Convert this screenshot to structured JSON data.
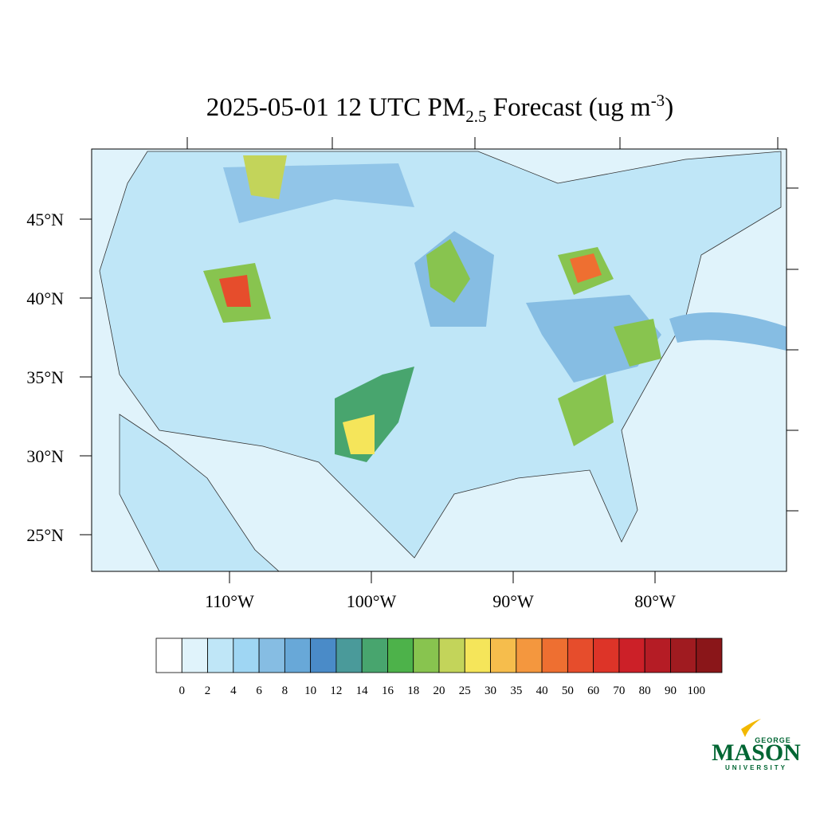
{
  "map": {
    "title": {
      "prefix": "2025-05-01 12 UTC PM",
      "subscript": "2.5",
      "middle": " Forecast (ug m",
      "superscript": "-3",
      "suffix": ")"
    },
    "lat_labels": [
      {
        "value": 45,
        "label": "45°N"
      },
      {
        "value": 40,
        "label": "40°N"
      },
      {
        "value": 35,
        "label": "35°N"
      },
      {
        "value": 30,
        "label": "30°N"
      },
      {
        "value": 25,
        "label": "25°N"
      }
    ],
    "lon_labels": [
      {
        "value": -110,
        "label": "110°W"
      },
      {
        "value": -100,
        "label": "100°W"
      },
      {
        "value": -90,
        "label": "90°W"
      },
      {
        "value": -80,
        "label": "80°W"
      }
    ],
    "colorbar": {
      "levels": [
        0,
        2,
        4,
        6,
        8,
        10,
        12,
        14,
        16,
        18,
        20,
        25,
        30,
        35,
        40,
        50,
        60,
        70,
        80,
        90,
        100
      ],
      "colors": [
        "#ffffff",
        "#e0f3fb",
        "#bfe6f7",
        "#9fd6f3",
        "#86bde3",
        "#68a8d8",
        "#4a8bc8",
        "#4a9a9a",
        "#48a56e",
        "#4db24a",
        "#88c44f",
        "#c3d45a",
        "#f5e55a",
        "#f6bd4c",
        "#f4973e",
        "#ee6f31",
        "#e64d2c",
        "#dd3428",
        "#cc2028",
        "#b51c25",
        "#a01b20",
        "#8a1619"
      ]
    },
    "logo": {
      "top": "GEORGE",
      "main": "MASON",
      "bottom": "UNIVERSITY"
    }
  }
}
